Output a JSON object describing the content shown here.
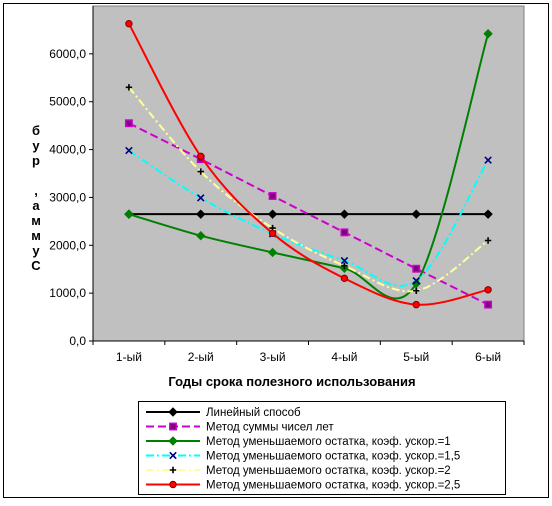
{
  "chart_data": {
    "type": "line",
    "categories": [
      "1-ый",
      "2-ый",
      "3-ый",
      "4-ый",
      "5-ый",
      "6-ый"
    ],
    "xlabel": "Годы срока полезного использования",
    "ylabel": "Сумма, руб",
    "ylim": [
      0,
      7000
    ],
    "yticks": [
      "0,0",
      "1000,0",
      "2000,0",
      "3000,0",
      "4000,0",
      "5000,0",
      "6000,0"
    ],
    "plot_background": "#c0c0c0",
    "grid": false,
    "legend_position": "bottom",
    "series": [
      {
        "name": "Линейный способ",
        "color": "#000000",
        "marker": "diamond",
        "dash": "solid",
        "smooth": false,
        "values": [
          2650,
          2650,
          2650,
          2650,
          2650,
          2650
        ]
      },
      {
        "name": "Метод суммы чисел лет",
        "color": "#cc00cc",
        "marker": "square",
        "dash": "dashed",
        "smooth": false,
        "values": [
          4550,
          3800,
          3030,
          2270,
          1510,
          760
        ]
      },
      {
        "name": "Метод уменьшаемого остатка, коэф. ускор.=1",
        "color": "#008000",
        "marker": "diamond",
        "dash": "solid",
        "smooth": true,
        "values": [
          2650,
          2200,
          1850,
          1520,
          1200,
          6420
        ]
      },
      {
        "name": "Метод уменьшаемого остатка, коэф. ускор.=1,5",
        "color": "#00ffff",
        "marker": "x",
        "dash": "dashdot",
        "smooth": true,
        "values": [
          3980,
          2990,
          2240,
          1680,
          1260,
          3780
        ]
      },
      {
        "name": "Метод уменьшаемого остатка, коэф. ускор.=2",
        "color": "#ffff99",
        "marker": "plus",
        "dash": "dashdot",
        "smooth": true,
        "values": [
          5300,
          3540,
          2360,
          1570,
          1050,
          2100
        ]
      },
      {
        "name": "Метод уменьшаемого остатка, коэф. ускор.=2,5",
        "color": "#ff0000",
        "marker": "circle",
        "dash": "solid",
        "smooth": true,
        "values": [
          6630,
          3860,
          2250,
          1310,
          760,
          1070
        ]
      }
    ]
  }
}
